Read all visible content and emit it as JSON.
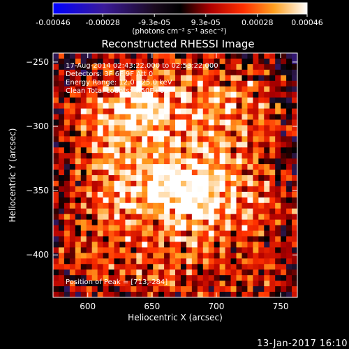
{
  "colorbar": {
    "tick_labels": [
      "-0.00046",
      "-0.00028",
      "-9.3e-05",
      "9.3e-05",
      "0.00028",
      "0.00046"
    ],
    "tick_values": [
      -0.00046,
      -0.00028,
      -9.3e-05,
      9.3e-05,
      0.00028,
      0.00046
    ],
    "range": [
      -0.00046,
      0.00046
    ],
    "unit_label": "(photons cm⁻² s⁻¹ asec⁻²)",
    "colormap": "rhessi-blue-purple-red-yellow-white"
  },
  "chart_data": {
    "type": "heatmap",
    "title": "Reconstructed RHESSI Image",
    "xlabel": "Heliocentric X (arcsec)",
    "ylabel": "Heliocentric Y (arcsec)",
    "xlim": [
      573,
      763
    ],
    "ylim": [
      -433,
      -243
    ],
    "x_ticks": [
      600,
      650,
      700,
      750
    ],
    "y_ticks": [
      -250,
      -300,
      -350,
      -400
    ],
    "x_tick_labels": [
      "600",
      "650",
      "700",
      "750"
    ],
    "y_tick_labels": [
      "−250",
      "−300",
      "−350",
      "−400"
    ],
    "annotations": [
      "17-Aug-2014 02:43:22.000 to 02:53:22.000",
      "Detectors: 3F 6F 9F Att 0",
      "Energy Range: 12.0 - 25.0 keV",
      "Clean     Total counts: 4.50E+03",
      "Position of Peak = [713,-284]"
    ],
    "peak": {
      "x": 713,
      "y": -284
    },
    "bright_sources": [
      {
        "x": 650,
        "y": -280,
        "strength": 1.0
      },
      {
        "x": 678,
        "y": -345,
        "strength": 0.95
      },
      {
        "x": 715,
        "y": -285,
        "strength": 0.85
      },
      {
        "x": 605,
        "y": -300,
        "strength": 0.6
      },
      {
        "x": 628,
        "y": -350,
        "strength": 0.7
      },
      {
        "x": 600,
        "y": -400,
        "strength": 0.45
      },
      {
        "x": 660,
        "y": -410,
        "strength": 0.55
      },
      {
        "x": 700,
        "y": -360,
        "strength": 0.5
      },
      {
        "x": 745,
        "y": -355,
        "strength": 0.4
      },
      {
        "x": 730,
        "y": -420,
        "strength": 0.4
      }
    ]
  },
  "footer": {
    "timestamp": "13-Jan-2017 16:10"
  }
}
